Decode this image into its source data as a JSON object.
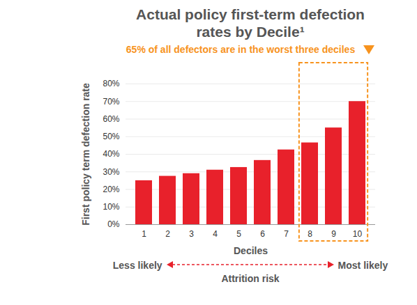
{
  "chart_data": {
    "type": "bar",
    "title": "Actual policy first-term defection rates by Decile¹",
    "categories": [
      "1",
      "2",
      "3",
      "4",
      "5",
      "6",
      "7",
      "8",
      "9",
      "10"
    ],
    "values": [
      25,
      27.5,
      29,
      31,
      32.5,
      36.5,
      42.5,
      46.5,
      55,
      70
    ],
    "color": "#e8212b",
    "x_label": "Deciles",
    "y_label": "First policy term defection rate",
    "ylim": [
      0,
      80
    ],
    "yticks": [
      {
        "value": 0,
        "label": "0%"
      },
      {
        "value": 10,
        "label": "10%"
      },
      {
        "value": 20,
        "label": "20%"
      },
      {
        "value": 30,
        "label": "30%"
      },
      {
        "value": 40,
        "label": "40%"
      },
      {
        "value": 50,
        "label": "50%"
      },
      {
        "value": 60,
        "label": "60%"
      },
      {
        "value": 70,
        "label": "70%"
      },
      {
        "value": 80,
        "label": "80%"
      }
    ],
    "grid": true,
    "annotation": {
      "text": "65% of all defectors are in the worst three deciles",
      "categories": [
        "8",
        "9",
        "10"
      ]
    },
    "risk_scale": {
      "left": "Less likely",
      "right": "Most likely",
      "title": "Attrition risk"
    }
  }
}
